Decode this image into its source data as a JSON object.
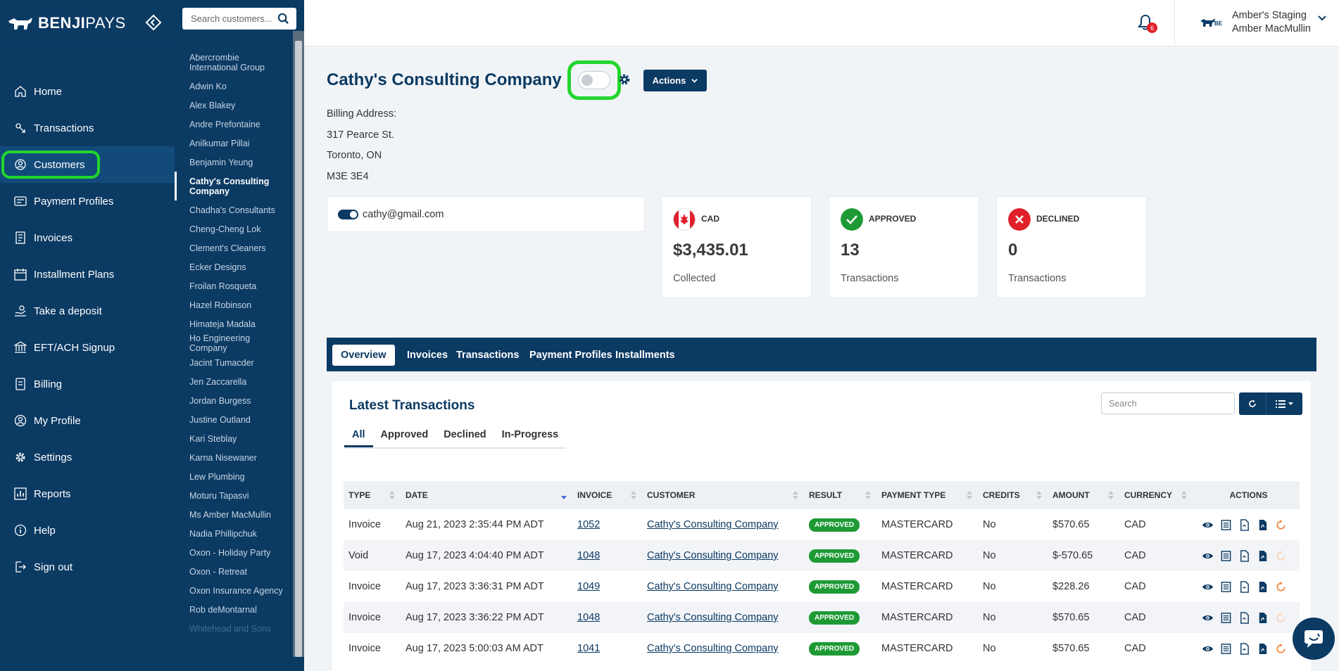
{
  "brand": {
    "name_bold": "BENJI",
    "name_light": "PAYS"
  },
  "nav": {
    "items": [
      {
        "label": "Home",
        "icon": "home-icon"
      },
      {
        "label": "Transactions",
        "icon": "transactions-icon"
      },
      {
        "label": "Customers",
        "icon": "customers-icon",
        "active": true
      },
      {
        "label": "Payment Profiles",
        "icon": "payment-profiles-icon"
      },
      {
        "label": "Invoices",
        "icon": "invoices-icon"
      },
      {
        "label": "Installment Plans",
        "icon": "calendar-icon"
      },
      {
        "label": "Take a deposit",
        "icon": "deposit-icon"
      },
      {
        "label": "EFT/ACH Signup",
        "icon": "bank-icon"
      },
      {
        "label": "Billing",
        "icon": "billing-icon"
      },
      {
        "label": "My Profile",
        "icon": "profile-icon"
      },
      {
        "label": "Settings",
        "icon": "settings-icon"
      },
      {
        "label": "Reports",
        "icon": "reports-icon"
      },
      {
        "label": "Help",
        "icon": "help-icon"
      },
      {
        "label": "Sign out",
        "icon": "signout-icon"
      }
    ]
  },
  "customer_list": {
    "search_placeholder": "Search customers...",
    "items": [
      "Abercrombie International Group",
      "Adwin Ko",
      "Alex Blakey",
      "Andre Prefontaine",
      "Anilkumar Pillai",
      "Benjamin Yeung",
      "Cathy's Consulting Company",
      "Chadha's Consultants",
      "Cheng-Cheng Lok",
      "Clement's Cleaners",
      "Ecker Designs",
      "Froilan Rosqueta",
      "Hazel Robinson",
      "Himateja Madala",
      "Ho Engineering Company",
      "Jacint Tumacder",
      "Jen Zaccarella",
      "Jordan Burgess",
      "Justine Outland",
      "Kari Steblay",
      "Karna Nisewaner",
      "Lew Plumbing",
      "Moturu Tapasvi",
      "Ms Amber MacMullin",
      "Nadia Phillipchuk",
      "Oxon - Holiday Party",
      "Oxon - Retreat",
      "Oxon Insurance Agency",
      "Rob deMontarnal",
      "Whitehead and Sons"
    ],
    "active": "Cathy's Consulting Company"
  },
  "header": {
    "notification_count": "6",
    "account_name": "Amber's Staging",
    "account_user": "Amber MacMullin"
  },
  "customer": {
    "name": "Cathy's Consulting Company",
    "actions_label": "Actions",
    "billing_label": "Billing Address:",
    "address_line1": "317 Pearce St.",
    "address_line2": "Toronto, ON",
    "address_line3": "M3E 3E4",
    "email": "cathy@gmail.com"
  },
  "stats": {
    "collected": {
      "label": "CAD",
      "value": "$3,435.01",
      "sub": "Collected"
    },
    "approved": {
      "label": "APPROVED",
      "value": "13",
      "sub": "Transactions"
    },
    "declined": {
      "label": "DECLINED",
      "value": "0",
      "sub": "Transactions"
    }
  },
  "tabs": [
    "Overview",
    "Invoices",
    "Transactions",
    "Payment Profiles",
    "Installments"
  ],
  "transactions": {
    "title": "Latest Transactions",
    "search_placeholder": "Search",
    "filters": [
      "All",
      "Approved",
      "Declined",
      "In-Progress"
    ],
    "columns": [
      "TYPE",
      "DATE",
      "INVOICE",
      "CUSTOMER",
      "RESULT",
      "PAYMENT TYPE",
      "CREDITS",
      "AMOUNT",
      "CURRENCY",
      "ACTIONS"
    ],
    "rows": [
      {
        "type": "Invoice",
        "date": "Aug 21, 2023 2:35:44 PM ADT",
        "invoice": "1052",
        "customer": "Cathy's Consulting Company",
        "result": "APPROVED",
        "payment_type": "MASTERCARD",
        "credits": "No",
        "amount": "$570.65",
        "currency": "CAD",
        "refund_enabled": true
      },
      {
        "type": "Void",
        "date": "Aug 17, 2023 4:04:40 PM ADT",
        "invoice": "1048",
        "customer": "Cathy's Consulting Company",
        "result": "APPROVED",
        "payment_type": "MASTERCARD",
        "credits": "No",
        "amount": "$-570.65",
        "currency": "CAD",
        "refund_enabled": false
      },
      {
        "type": "Invoice",
        "date": "Aug 17, 2023 3:36:31 PM ADT",
        "invoice": "1049",
        "customer": "Cathy's Consulting Company",
        "result": "APPROVED",
        "payment_type": "MASTERCARD",
        "credits": "No",
        "amount": "$228.26",
        "currency": "CAD",
        "refund_enabled": true
      },
      {
        "type": "Invoice",
        "date": "Aug 17, 2023 3:36:22 PM ADT",
        "invoice": "1048",
        "customer": "Cathy's Consulting Company",
        "result": "APPROVED",
        "payment_type": "MASTERCARD",
        "credits": "No",
        "amount": "$570.65",
        "currency": "CAD",
        "refund_enabled": false
      },
      {
        "type": "Invoice",
        "date": "Aug 17, 2023 5:00:03 AM ADT",
        "invoice": "1041",
        "customer": "Cathy's Consulting Company",
        "result": "APPROVED",
        "payment_type": "MASTERCARD",
        "credits": "No",
        "amount": "$570.65",
        "currency": "CAD",
        "refund_enabled": true
      }
    ]
  },
  "colors": {
    "primary": "#0b3a63",
    "highlight": "#22d62d",
    "approved": "#1e9a35",
    "declined": "#e0202a"
  }
}
